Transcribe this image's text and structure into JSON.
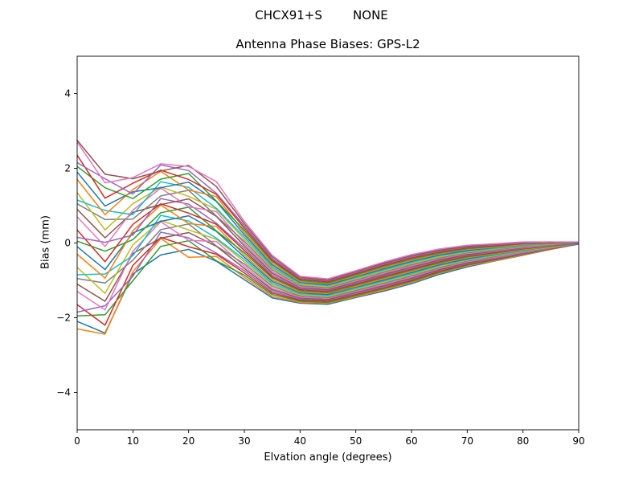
{
  "chart_data": {
    "type": "line",
    "title": "CHCX91+S        NONE",
    "subtitle": "Antenna Phase Biases: GPS-L2",
    "xlabel": "Elvation angle (degrees)",
    "ylabel": "Bias (mm)",
    "xlim": [
      0,
      90
    ],
    "ylim": [
      -5,
      5
    ],
    "xticks": [
      0,
      10,
      20,
      30,
      40,
      50,
      60,
      70,
      80,
      90
    ],
    "yticks": [
      -4,
      -2,
      0,
      2,
      4
    ],
    "grid": false,
    "legend": "none",
    "line_width": 1.5,
    "x": [
      0,
      5,
      10,
      15,
      20,
      25,
      30,
      35,
      40,
      45,
      50,
      55,
      60,
      65,
      70,
      75,
      80,
      85,
      90
    ],
    "series": [
      {
        "color": "#1f77b4",
        "values": [
          -2.1,
          -2.41,
          -0.83,
          -0.32,
          -0.17,
          -0.49,
          -0.98,
          -1.47,
          -1.61,
          -1.64,
          -1.46,
          -1.29,
          -1.09,
          -0.84,
          -0.64,
          -0.48,
          -0.33,
          -0.17,
          -0.03
        ]
      },
      {
        "color": "#ff7f0e",
        "values": [
          -2.3,
          -2.44,
          -0.77,
          0.12,
          -0.38,
          -0.36,
          -0.92,
          -1.43,
          -1.59,
          -1.61,
          -1.44,
          -1.26,
          -1.06,
          -0.81,
          -0.61,
          -0.47,
          -0.32,
          -0.17,
          -0.02
        ]
      },
      {
        "color": "#2ca02c",
        "values": [
          -1.95,
          -1.92,
          -1.01,
          -0.09,
          0.06,
          -0.48,
          -0.86,
          -1.38,
          -1.56,
          -1.59,
          -1.41,
          -1.23,
          -1.03,
          -0.79,
          -0.59,
          -0.45,
          -0.3,
          -0.16,
          -0.02
        ]
      },
      {
        "color": "#d62728",
        "values": [
          -1.65,
          -2.2,
          -0.6,
          0.15,
          -0.1,
          -0.3,
          -0.8,
          -1.34,
          -1.53,
          -1.56,
          -1.38,
          -1.2,
          -1.0,
          -0.76,
          -0.57,
          -0.43,
          -0.29,
          -0.15,
          -0.02
        ]
      },
      {
        "color": "#9467bd",
        "values": [
          -1.85,
          -1.68,
          -0.89,
          0.29,
          0.14,
          -0.27,
          -0.74,
          -1.3,
          -1.5,
          -1.53,
          -1.35,
          -1.17,
          -0.97,
          -0.73,
          -0.55,
          -0.41,
          -0.28,
          -0.14,
          -0.02
        ]
      },
      {
        "color": "#8c564b",
        "values": [
          -1.1,
          -1.56,
          -0.28,
          0.13,
          0.28,
          -0.09,
          -0.68,
          -1.25,
          -1.47,
          -1.51,
          -1.32,
          -1.14,
          -0.94,
          -0.71,
          -0.53,
          -0.39,
          -0.26,
          -0.13,
          -0.02
        ]
      },
      {
        "color": "#e377c2",
        "values": [
          -1.3,
          -1.79,
          -0.22,
          0.57,
          0.07,
          0.04,
          -0.62,
          -1.21,
          -1.45,
          -1.48,
          -1.3,
          -1.11,
          -0.91,
          -0.68,
          -0.5,
          -0.38,
          -0.25,
          -0.13,
          -0.01
        ]
      },
      {
        "color": "#7f7f7f",
        "values": [
          -0.95,
          -1.07,
          -0.46,
          0.36,
          0.51,
          -0.08,
          -0.56,
          -1.16,
          -1.42,
          -1.46,
          -1.27,
          -1.08,
          -0.88,
          -0.66,
          -0.48,
          -0.36,
          -0.23,
          -0.12,
          -0.01
        ]
      },
      {
        "color": "#bcbd22",
        "values": [
          -0.65,
          -1.35,
          -0.05,
          0.6,
          0.35,
          0.1,
          -0.5,
          -1.12,
          -1.39,
          -1.43,
          -1.24,
          -1.05,
          -0.85,
          -0.63,
          -0.46,
          -0.34,
          -0.22,
          -0.11,
          -0.01
        ]
      },
      {
        "color": "#17becf",
        "values": [
          -0.85,
          -0.83,
          -0.34,
          0.74,
          0.59,
          0.13,
          -0.44,
          -1.08,
          -1.36,
          -1.4,
          -1.21,
          -1.02,
          -0.82,
          -0.6,
          -0.44,
          -0.32,
          -0.21,
          -0.1,
          -0.01
        ]
      },
      {
        "color": "#1f77b4",
        "values": [
          -0.1,
          -0.71,
          0.27,
          0.58,
          0.73,
          0.31,
          -0.38,
          -1.03,
          -1.33,
          -1.38,
          -1.18,
          -0.99,
          -0.79,
          -0.58,
          -0.42,
          -0.3,
          -0.19,
          -0.09,
          -0.01
        ]
      },
      {
        "color": "#ff7f0e",
        "values": [
          -0.3,
          -0.94,
          0.33,
          1.02,
          0.52,
          0.44,
          -0.32,
          -0.99,
          -1.31,
          -1.35,
          -1.16,
          -0.96,
          -0.76,
          -0.55,
          -0.39,
          -0.29,
          -0.18,
          -0.09,
          0.0
        ]
      },
      {
        "color": "#2ca02c",
        "values": [
          0.05,
          -0.22,
          0.09,
          0.81,
          0.96,
          0.32,
          -0.26,
          -0.94,
          -1.28,
          -1.33,
          -1.13,
          -0.93,
          -0.73,
          -0.53,
          -0.37,
          -0.27,
          -0.16,
          -0.08,
          0.0
        ]
      },
      {
        "color": "#d62728",
        "values": [
          0.35,
          -0.5,
          0.5,
          1.05,
          0.8,
          0.5,
          -0.2,
          -0.9,
          -1.25,
          -1.3,
          -1.1,
          -0.9,
          -0.7,
          -0.5,
          -0.35,
          -0.25,
          -0.15,
          -0.07,
          0.0
        ]
      },
      {
        "color": "#9467bd",
        "values": [
          0.15,
          0.02,
          0.21,
          1.19,
          1.04,
          0.53,
          -0.14,
          -0.86,
          -1.22,
          -1.27,
          -1.07,
          -0.87,
          -0.67,
          -0.47,
          -0.33,
          -0.23,
          -0.14,
          -0.06,
          0.0
        ]
      },
      {
        "color": "#8c564b",
        "values": [
          0.9,
          0.14,
          0.82,
          1.03,
          1.18,
          0.71,
          -0.08,
          -0.81,
          -1.19,
          -1.25,
          -1.04,
          -0.84,
          -0.64,
          -0.45,
          -0.31,
          -0.21,
          -0.12,
          -0.05,
          0.0
        ]
      },
      {
        "color": "#e377c2",
        "values": [
          0.7,
          -0.09,
          0.88,
          1.47,
          0.97,
          0.84,
          -0.02,
          -0.77,
          -1.17,
          -1.22,
          -1.02,
          -0.81,
          -0.61,
          -0.42,
          -0.28,
          -0.2,
          -0.11,
          -0.05,
          0.01
        ]
      },
      {
        "color": "#7f7f7f",
        "values": [
          1.05,
          0.63,
          0.64,
          1.26,
          1.41,
          0.72,
          0.04,
          -0.72,
          -1.14,
          -1.2,
          -0.99,
          -0.78,
          -0.58,
          -0.4,
          -0.26,
          -0.18,
          -0.09,
          -0.04,
          0.01
        ]
      },
      {
        "color": "#bcbd22",
        "values": [
          1.35,
          0.35,
          1.05,
          1.5,
          1.25,
          0.9,
          0.1,
          -0.68,
          -1.11,
          -1.17,
          -0.96,
          -0.75,
          -0.55,
          -0.37,
          -0.24,
          -0.16,
          -0.08,
          -0.03,
          0.01
        ]
      },
      {
        "color": "#17becf",
        "values": [
          1.15,
          0.87,
          0.76,
          1.64,
          1.49,
          0.93,
          0.16,
          -0.64,
          -1.08,
          -1.14,
          -0.93,
          -0.72,
          -0.52,
          -0.34,
          -0.22,
          -0.14,
          -0.07,
          -0.02,
          0.01
        ]
      },
      {
        "color": "#1f77b4",
        "values": [
          1.9,
          0.99,
          1.37,
          1.48,
          1.63,
          1.11,
          0.22,
          -0.59,
          -1.05,
          -1.12,
          -0.9,
          -0.69,
          -0.49,
          -0.32,
          -0.2,
          -0.12,
          -0.05,
          -0.01,
          0.01
        ]
      },
      {
        "color": "#ff7f0e",
        "values": [
          1.7,
          0.76,
          1.43,
          1.92,
          1.42,
          1.24,
          0.28,
          -0.55,
          -1.03,
          -1.09,
          -0.88,
          -0.66,
          -0.46,
          -0.29,
          -0.17,
          -0.11,
          -0.04,
          -0.01,
          0.02
        ]
      },
      {
        "color": "#2ca02c",
        "values": [
          2.05,
          1.48,
          1.19,
          1.71,
          1.86,
          1.12,
          0.34,
          -0.5,
          -1.0,
          -1.07,
          -0.85,
          -0.63,
          -0.43,
          -0.27,
          -0.15,
          -0.09,
          -0.02,
          0.0,
          0.02
        ]
      },
      {
        "color": "#d62728",
        "values": [
          2.35,
          1.2,
          1.6,
          1.95,
          1.7,
          1.3,
          0.4,
          -0.46,
          -0.97,
          -1.04,
          -0.82,
          -0.6,
          -0.4,
          -0.24,
          -0.13,
          -0.07,
          -0.01,
          0.01,
          0.02
        ]
      },
      {
        "color": "#9467bd",
        "values": [
          2.15,
          1.72,
          1.31,
          2.09,
          1.94,
          1.33,
          0.46,
          -0.42,
          -0.94,
          -1.01,
          -0.79,
          -0.57,
          -0.37,
          -0.21,
          -0.11,
          -0.05,
          0.0,
          0.02,
          0.02
        ]
      },
      {
        "color": "#8c564b",
        "values": [
          2.75,
          1.84,
          1.72,
          1.93,
          2.08,
          1.51,
          0.52,
          -0.37,
          -0.91,
          -0.99,
          -0.76,
          -0.54,
          -0.34,
          -0.19,
          -0.09,
          -0.03,
          0.02,
          0.03,
          0.02
        ]
      },
      {
        "color": "#e377c2",
        "values": [
          2.7,
          1.61,
          1.75,
          2.12,
          2.05,
          1.64,
          0.58,
          -0.33,
          -0.89,
          -0.96,
          -0.74,
          -0.51,
          -0.31,
          -0.16,
          -0.06,
          -0.02,
          0.03,
          0.03,
          0.03
        ]
      }
    ]
  }
}
